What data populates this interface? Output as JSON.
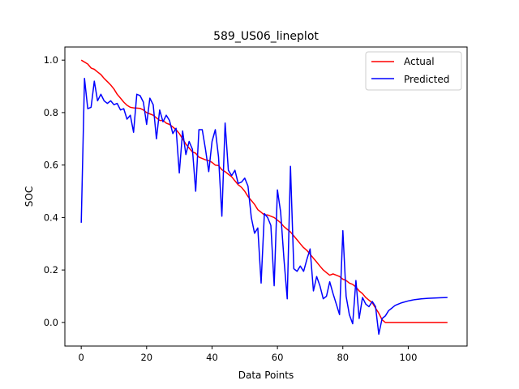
{
  "chart_data": {
    "type": "line",
    "title": "589_US06_lineplot",
    "xlabel": "Data Points",
    "ylabel": "SOC",
    "xlim": [
      -5,
      118
    ],
    "ylim": [
      -0.09,
      1.05
    ],
    "xticks": [
      0,
      20,
      40,
      60,
      80,
      100
    ],
    "yticks": [
      0.0,
      0.2,
      0.4,
      0.6,
      0.8,
      1.0
    ],
    "xtick_labels": [
      "0",
      "20",
      "40",
      "60",
      "80",
      "100"
    ],
    "ytick_labels": [
      "0.0",
      "0.2",
      "0.4",
      "0.6",
      "0.8",
      "1.0"
    ],
    "legend_position": "top-right",
    "grid": false,
    "series": [
      {
        "name": "Actual",
        "color": "#ff0000",
        "x": [
          0,
          2,
          3,
          4,
          5,
          6,
          7,
          8,
          9,
          10,
          11,
          12,
          13,
          14,
          15,
          16,
          17,
          18,
          19,
          20,
          21,
          22,
          23,
          24,
          25,
          26,
          27,
          28,
          29,
          30,
          31,
          32,
          33,
          34,
          35,
          36,
          37,
          38,
          39,
          40,
          41,
          42,
          43,
          44,
          45,
          46,
          47,
          48,
          49,
          50,
          51,
          52,
          53,
          54,
          55,
          56,
          57,
          58,
          59,
          60,
          61,
          62,
          63,
          64,
          65,
          66,
          67,
          68,
          69,
          70,
          71,
          72,
          73,
          74,
          75,
          76,
          77,
          78,
          79,
          80,
          81,
          82,
          83,
          84,
          85,
          86,
          87,
          88,
          89,
          90,
          91,
          92,
          93,
          100,
          112
        ],
        "values": [
          1.0,
          0.985,
          0.97,
          0.965,
          0.955,
          0.945,
          0.93,
          0.918,
          0.905,
          0.89,
          0.87,
          0.855,
          0.84,
          0.828,
          0.82,
          0.818,
          0.817,
          0.816,
          0.81,
          0.8,
          0.795,
          0.79,
          0.78,
          0.77,
          0.77,
          0.76,
          0.755,
          0.745,
          0.735,
          0.72,
          0.7,
          0.68,
          0.665,
          0.65,
          0.645,
          0.63,
          0.625,
          0.62,
          0.617,
          0.61,
          0.6,
          0.598,
          0.582,
          0.575,
          0.565,
          0.555,
          0.54,
          0.525,
          0.515,
          0.5,
          0.48,
          0.465,
          0.45,
          0.43,
          0.42,
          0.41,
          0.41,
          0.405,
          0.4,
          0.39,
          0.38,
          0.365,
          0.355,
          0.345,
          0.33,
          0.315,
          0.3,
          0.285,
          0.275,
          0.26,
          0.245,
          0.23,
          0.215,
          0.2,
          0.19,
          0.18,
          0.185,
          0.18,
          0.175,
          0.165,
          0.16,
          0.15,
          0.145,
          0.135,
          0.12,
          0.11,
          0.095,
          0.085,
          0.075,
          0.055,
          0.035,
          0.01,
          0.0,
          0.0,
          0.0
        ]
      },
      {
        "name": "Predicted",
        "color": "#0000ff",
        "x": [
          0,
          1,
          2,
          3,
          4,
          5,
          6,
          7,
          8,
          9,
          10,
          11,
          12,
          13,
          14,
          15,
          16,
          17,
          18,
          19,
          20,
          21,
          22,
          23,
          24,
          25,
          26,
          27,
          28,
          29,
          30,
          31,
          32,
          33,
          34,
          35,
          36,
          37,
          38,
          39,
          40,
          41,
          42,
          43,
          44,
          45,
          46,
          47,
          48,
          49,
          50,
          51,
          52,
          53,
          54,
          55,
          56,
          57,
          58,
          59,
          60,
          61,
          62,
          63,
          64,
          65,
          66,
          67,
          68,
          69,
          70,
          71,
          72,
          73,
          74,
          75,
          76,
          77,
          78,
          79,
          80,
          81,
          82,
          83,
          84,
          85,
          86,
          87,
          88,
          89,
          90,
          91,
          92,
          93,
          94,
          95,
          96,
          97,
          98,
          100,
          102,
          104,
          106,
          108,
          110,
          112
        ],
        "values": [
          0.38,
          0.93,
          0.815,
          0.82,
          0.92,
          0.845,
          0.87,
          0.845,
          0.835,
          0.845,
          0.83,
          0.835,
          0.81,
          0.815,
          0.775,
          0.79,
          0.725,
          0.87,
          0.865,
          0.84,
          0.755,
          0.855,
          0.83,
          0.7,
          0.81,
          0.765,
          0.79,
          0.77,
          0.72,
          0.74,
          0.57,
          0.73,
          0.64,
          0.69,
          0.66,
          0.5,
          0.735,
          0.735,
          0.66,
          0.575,
          0.69,
          0.735,
          0.63,
          0.405,
          0.76,
          0.58,
          0.56,
          0.58,
          0.53,
          0.535,
          0.55,
          0.52,
          0.4,
          0.34,
          0.36,
          0.15,
          0.415,
          0.4,
          0.37,
          0.14,
          0.505,
          0.42,
          0.24,
          0.09,
          0.595,
          0.205,
          0.195,
          0.215,
          0.195,
          0.24,
          0.28,
          0.12,
          0.175,
          0.14,
          0.09,
          0.1,
          0.155,
          0.11,
          0.07,
          0.03,
          0.35,
          0.1,
          0.03,
          -0.005,
          0.16,
          0.015,
          0.095,
          0.07,
          0.06,
          0.08,
          0.06,
          -0.045,
          0.015,
          0.025,
          0.045,
          0.055,
          0.065,
          0.07,
          0.075,
          0.082,
          0.087,
          0.09,
          0.092,
          0.093,
          0.094,
          0.095
        ]
      }
    ]
  }
}
